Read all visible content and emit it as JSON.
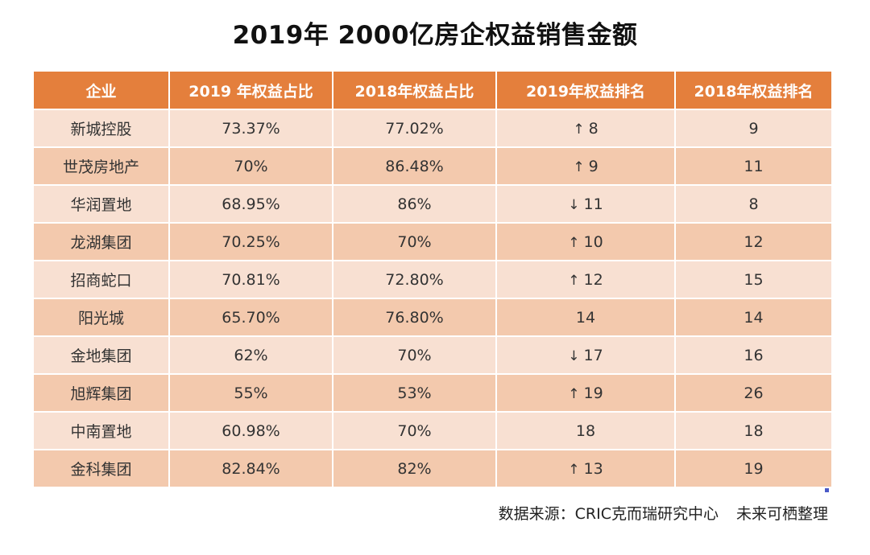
{
  "title": "2019年 2000亿房企权益销售金额",
  "table": {
    "headers": [
      "企业",
      "2019 年权益占比",
      "2018年权益占比",
      "2019年权益排名",
      "2018年权益排名"
    ],
    "rows": [
      {
        "company": "新城控股",
        "share_2019": "73.37%",
        "share_2018": "77.02%",
        "rank_2019_arrow": "↑",
        "rank_2019": "8",
        "rank_2018": "9"
      },
      {
        "company": "世茂房地产",
        "share_2019": "70%",
        "share_2018": "86.48%",
        "rank_2019_arrow": "↑",
        "rank_2019": "9",
        "rank_2018": "11"
      },
      {
        "company": "华润置地",
        "share_2019": "68.95%",
        "share_2018": "86%",
        "rank_2019_arrow": "↓",
        "rank_2019": "11",
        "rank_2018": "8"
      },
      {
        "company": "龙湖集团",
        "share_2019": "70.25%",
        "share_2018": "70%",
        "rank_2019_arrow": "↑",
        "rank_2019": "10",
        "rank_2018": "12"
      },
      {
        "company": "招商蛇口",
        "share_2019": "70.81%",
        "share_2018": "72.80%",
        "rank_2019_arrow": "↑",
        "rank_2019": "12",
        "rank_2018": "15"
      },
      {
        "company": "阳光城",
        "share_2019": "65.70%",
        "share_2018": "76.80%",
        "rank_2019_arrow": "",
        "rank_2019": "14",
        "rank_2018": "14"
      },
      {
        "company": "金地集团",
        "share_2019": "62%",
        "share_2018": "70%",
        "rank_2019_arrow": "↓",
        "rank_2019": "17",
        "rank_2018": "16"
      },
      {
        "company": "旭辉集团",
        "share_2019": "55%",
        "share_2018": "53%",
        "rank_2019_arrow": "↑",
        "rank_2019": "19",
        "rank_2018": "26"
      },
      {
        "company": "中南置地",
        "share_2019": "60.98%",
        "share_2018": "70%",
        "rank_2019_arrow": "",
        "rank_2019": "18",
        "rank_2018": "18"
      },
      {
        "company": "金科集团",
        "share_2019": "82.84%",
        "share_2018": "82%",
        "rank_2019_arrow": "↑",
        "rank_2019": "13",
        "rank_2018": "19"
      }
    ]
  },
  "source": {
    "text": "数据来源：CRIC克而瑞研究中心",
    "credit": "未来可栖整理"
  },
  "colors": {
    "header_bg": "#e47f3c",
    "row_light": "#f8e0d2",
    "row_dark": "#f3c9ad"
  }
}
